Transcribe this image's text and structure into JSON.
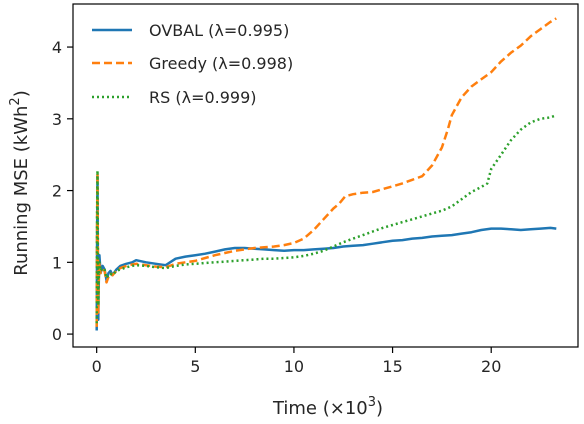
{
  "chart_data": {
    "type": "line",
    "xlabel": "Time (×10",
    "xlabel_sup": "3",
    "xlabel_end": ")",
    "ylabel": "Running MSE (kWh",
    "ylabel_sup": "2",
    "ylabel_end": ")",
    "xlim": [
      -1.2,
      24.4
    ],
    "ylim": [
      -0.18,
      4.6
    ],
    "xticks": [
      0,
      5,
      10,
      15,
      20
    ],
    "xtick_labels": [
      "0",
      "5",
      "10",
      "15",
      "20"
    ],
    "yticks": [
      0,
      1,
      2,
      3,
      4
    ],
    "ytick_labels": [
      "0",
      "1",
      "2",
      "3",
      "4"
    ],
    "grid": false,
    "legend_position": "top-left",
    "series": [
      {
        "name": "OVBAL (λ=0.995)",
        "color": "#1f77b4",
        "dash": "solid",
        "x": [
          0,
          0.02,
          0.04,
          0.06,
          0.08,
          0.1,
          0.14,
          0.2,
          0.3,
          0.4,
          0.5,
          0.6,
          0.7,
          0.8,
          1.0,
          1.2,
          1.5,
          1.8,
          2.0,
          2.5,
          3.0,
          3.5,
          4.0,
          4.5,
          5.0,
          5.5,
          6.0,
          6.5,
          7.0,
          7.5,
          8.0,
          8.5,
          9.0,
          9.5,
          10.0,
          10.5,
          11.0,
          11.5,
          12.0,
          12.5,
          13.0,
          13.5,
          14.0,
          14.5,
          15.0,
          15.5,
          16.0,
          16.5,
          17.0,
          17.5,
          18.0,
          18.5,
          19.0,
          19.5,
          20.0,
          20.5,
          21.0,
          21.5,
          22.0,
          22.5,
          23.0,
          23.3
        ],
        "y": [
          0.05,
          1.4,
          2.2,
          0.9,
          0.2,
          0.6,
          1.1,
          0.85,
          0.95,
          0.9,
          0.75,
          0.85,
          0.88,
          0.82,
          0.9,
          0.95,
          0.98,
          1.0,
          1.03,
          1.0,
          0.98,
          0.96,
          1.05,
          1.08,
          1.1,
          1.12,
          1.15,
          1.18,
          1.2,
          1.2,
          1.19,
          1.18,
          1.17,
          1.16,
          1.17,
          1.17,
          1.18,
          1.19,
          1.2,
          1.22,
          1.23,
          1.24,
          1.26,
          1.28,
          1.3,
          1.31,
          1.33,
          1.34,
          1.36,
          1.37,
          1.38,
          1.4,
          1.42,
          1.45,
          1.47,
          1.47,
          1.46,
          1.45,
          1.46,
          1.47,
          1.48,
          1.47
        ]
      },
      {
        "name": "Greedy (λ=0.998)",
        "color": "#ff7f0e",
        "dash": "dashed",
        "x": [
          0,
          0.02,
          0.04,
          0.06,
          0.08,
          0.1,
          0.14,
          0.2,
          0.3,
          0.4,
          0.5,
          0.6,
          0.7,
          0.8,
          1.0,
          1.2,
          1.5,
          1.8,
          2.0,
          2.5,
          3.0,
          3.5,
          4.0,
          4.5,
          5.0,
          5.5,
          6.0,
          6.5,
          7.0,
          7.5,
          8.0,
          8.5,
          9.0,
          9.5,
          10.0,
          10.5,
          11.0,
          11.5,
          12.0,
          12.3,
          12.6,
          13.0,
          13.5,
          14.0,
          14.5,
          15.0,
          15.5,
          16.0,
          16.5,
          17.0,
          17.5,
          17.8,
          18.0,
          18.5,
          19.0,
          19.5,
          20.0,
          20.5,
          21.0,
          21.5,
          22.0,
          22.5,
          23.0,
          23.3
        ],
        "y": [
          0.1,
          1.6,
          2.25,
          1.0,
          0.3,
          0.7,
          1.0,
          0.85,
          0.9,
          0.88,
          0.72,
          0.8,
          0.85,
          0.82,
          0.88,
          0.92,
          0.95,
          0.97,
          0.98,
          0.96,
          0.94,
          0.93,
          0.98,
          1.0,
          1.02,
          1.06,
          1.1,
          1.13,
          1.16,
          1.18,
          1.2,
          1.21,
          1.22,
          1.24,
          1.27,
          1.33,
          1.45,
          1.6,
          1.75,
          1.82,
          1.92,
          1.95,
          1.97,
          1.98,
          2.02,
          2.06,
          2.1,
          2.15,
          2.2,
          2.35,
          2.6,
          2.85,
          3.05,
          3.3,
          3.45,
          3.55,
          3.65,
          3.8,
          3.92,
          4.02,
          4.15,
          4.25,
          4.35,
          4.4
        ]
      },
      {
        "name": "RS (λ=0.999)",
        "color": "#2ca02c",
        "dash": "dotted",
        "x": [
          0,
          0.02,
          0.04,
          0.06,
          0.08,
          0.1,
          0.14,
          0.2,
          0.3,
          0.4,
          0.5,
          0.6,
          0.7,
          0.8,
          1.0,
          1.2,
          1.5,
          1.8,
          2.0,
          2.5,
          3.0,
          3.5,
          4.0,
          4.5,
          5.0,
          5.5,
          6.0,
          6.5,
          7.0,
          7.5,
          8.0,
          8.5,
          9.0,
          9.5,
          10.0,
          10.5,
          11.0,
          11.5,
          12.0,
          12.5,
          13.0,
          13.5,
          14.0,
          14.5,
          15.0,
          15.5,
          16.0,
          16.5,
          17.0,
          17.5,
          18.0,
          18.5,
          19.0,
          19.5,
          19.8,
          20.0,
          20.5,
          21.0,
          21.5,
          22.0,
          22.5,
          23.0,
          23.3
        ],
        "y": [
          0.15,
          1.7,
          2.28,
          1.1,
          0.4,
          0.75,
          1.0,
          0.88,
          0.92,
          0.9,
          0.78,
          0.82,
          0.84,
          0.82,
          0.88,
          0.9,
          0.93,
          0.95,
          0.96,
          0.95,
          0.93,
          0.92,
          0.95,
          0.97,
          0.98,
          0.99,
          1.0,
          1.01,
          1.02,
          1.03,
          1.04,
          1.05,
          1.05,
          1.06,
          1.07,
          1.09,
          1.12,
          1.16,
          1.22,
          1.28,
          1.33,
          1.38,
          1.43,
          1.48,
          1.52,
          1.56,
          1.6,
          1.64,
          1.68,
          1.72,
          1.78,
          1.88,
          1.98,
          2.05,
          2.1,
          2.3,
          2.5,
          2.7,
          2.85,
          2.95,
          3.0,
          3.02,
          3.05
        ]
      }
    ]
  }
}
